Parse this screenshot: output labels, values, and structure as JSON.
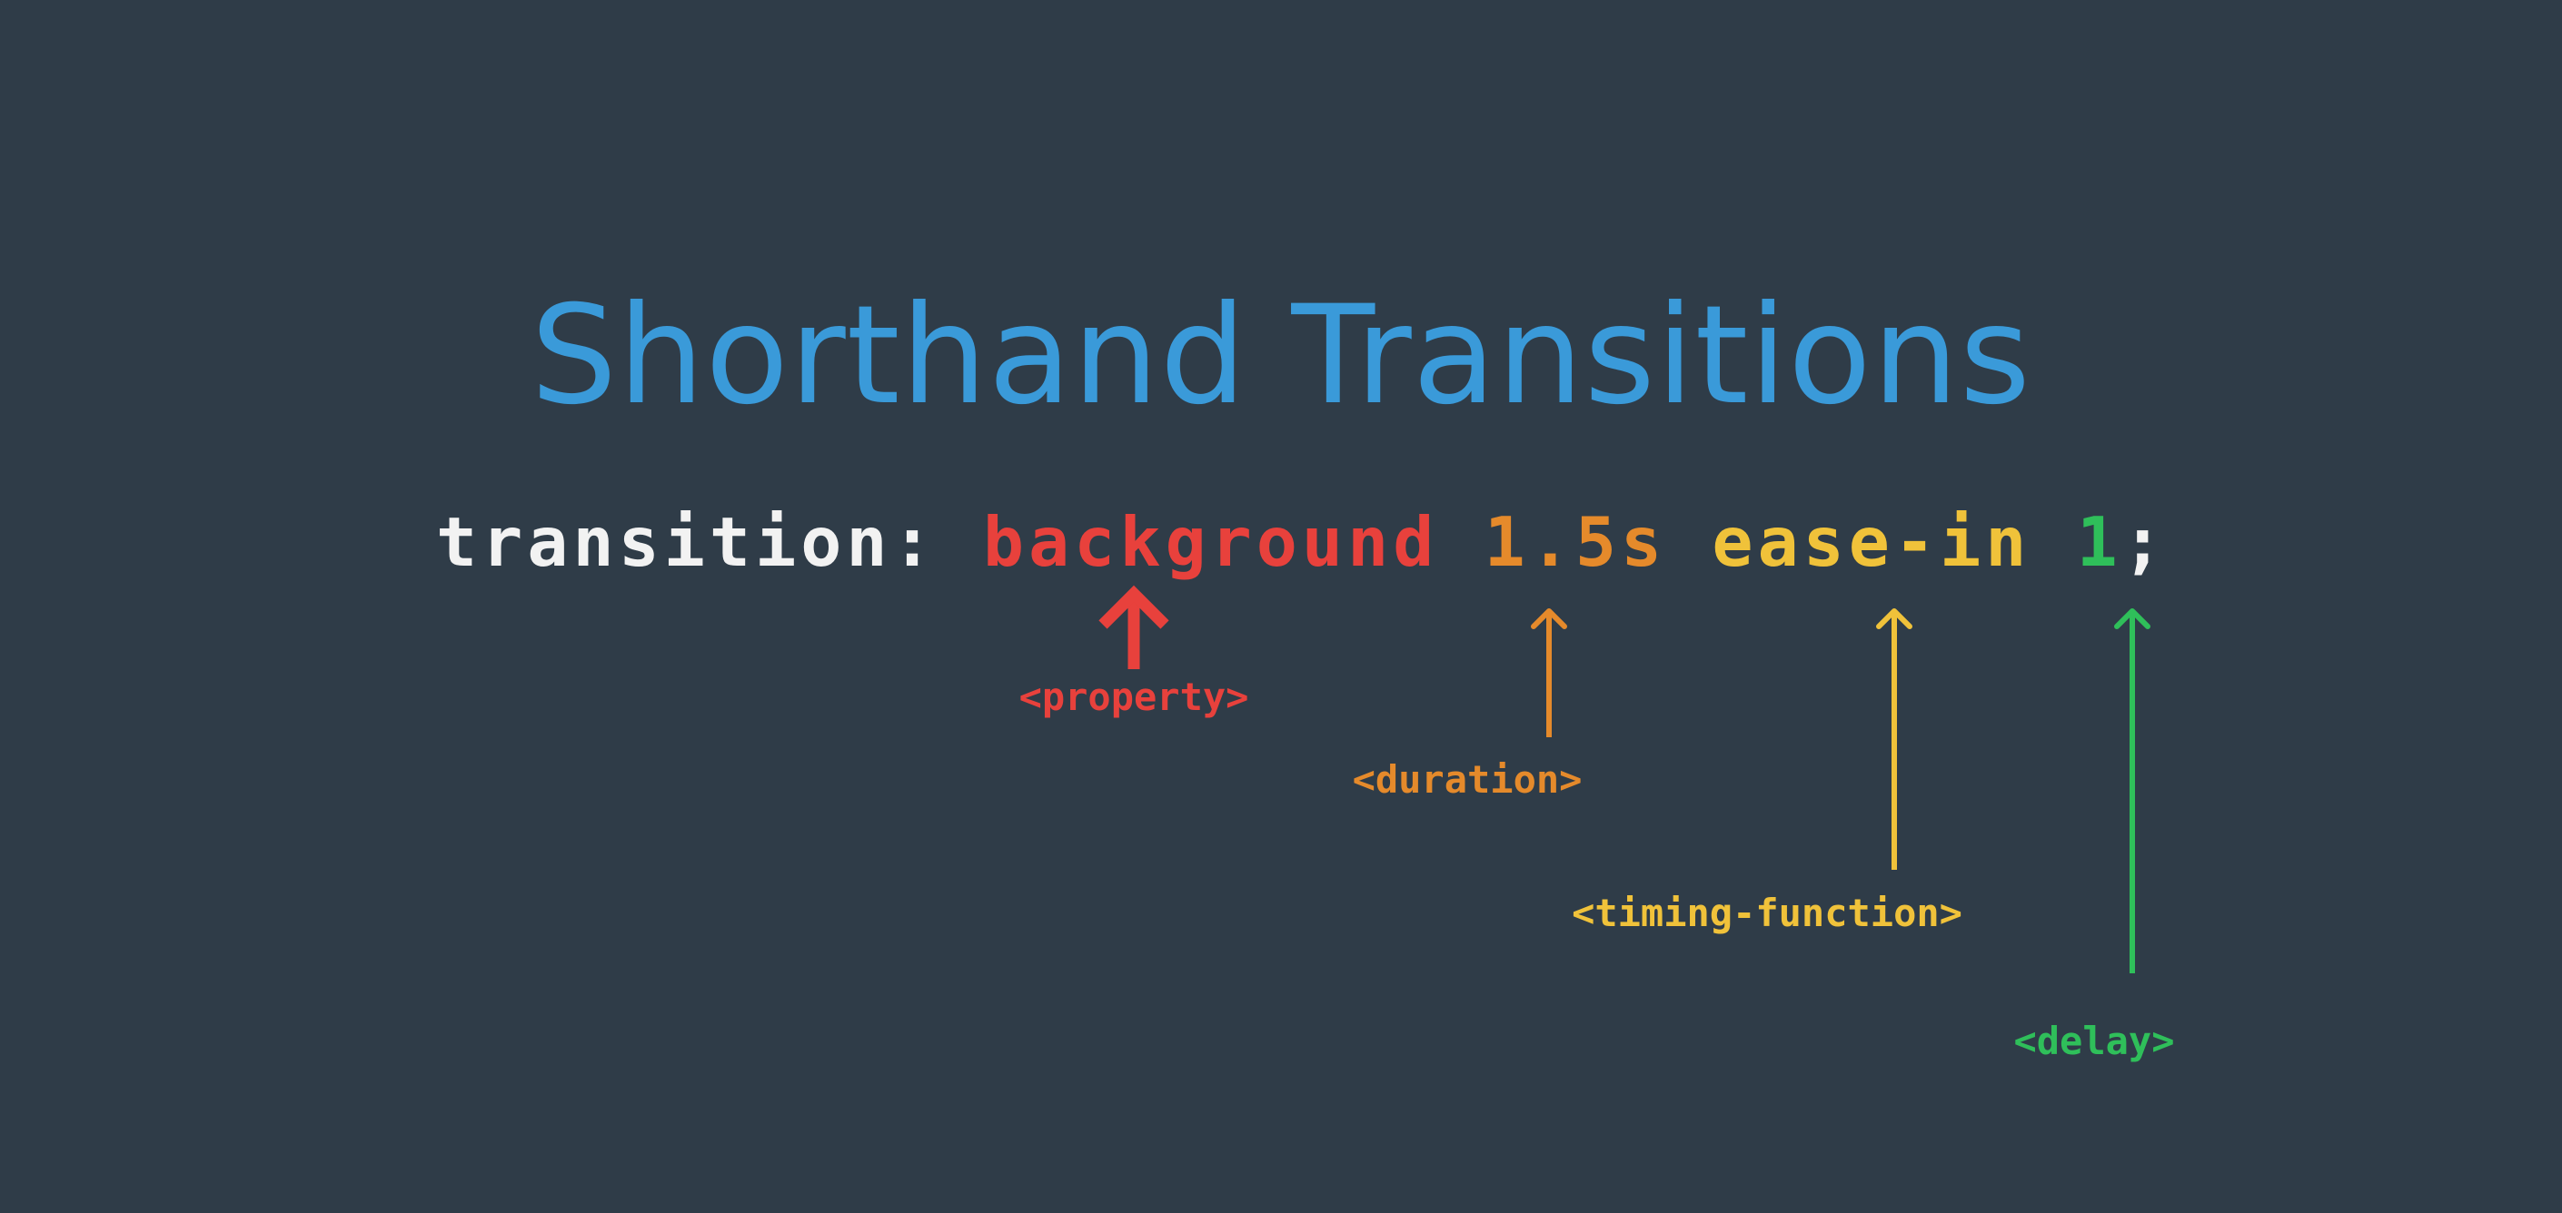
{
  "title": {
    "text": "Shorthand Transitions",
    "color": "#3a9ad9"
  },
  "code": {
    "keyword": "transition:",
    "property": "background",
    "duration": "1.5s",
    "timing_function": "ease-in",
    "delay": "1",
    "terminator": ";"
  },
  "labels": {
    "property": "<property>",
    "duration": "<duration>",
    "timing_function": "<timing-function>",
    "delay": "<delay>"
  },
  "colors": {
    "background": "#2f3c48",
    "keyword": "#f2f2f2",
    "property": "#e8413c",
    "duration": "#e58a2b",
    "timing_function": "#f0c23a",
    "delay": "#2fbf5a"
  }
}
